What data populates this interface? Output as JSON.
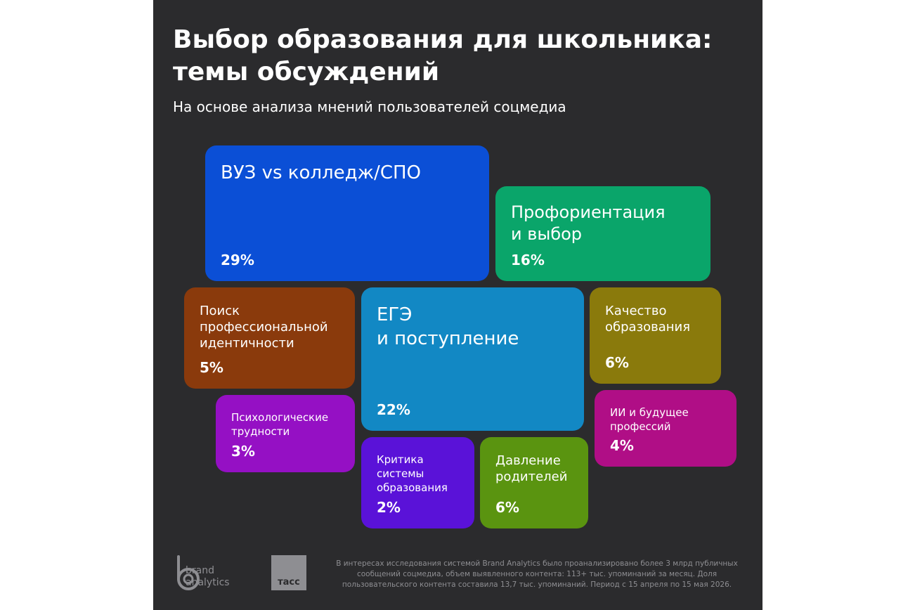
{
  "header": {
    "title": "Выбор образования для школьника: темы обсуждений",
    "subtitle": "На основе анализа мнений пользователей соцмедиа"
  },
  "chart_data": {
    "type": "treemap",
    "title": "Выбор образования для школьника: темы обсуждений",
    "subtitle": "На основе анализа мнений пользователей соцмедиа",
    "unit": "%",
    "series": [
      {
        "label": "ВУЗ vs колледж/СПО",
        "value": 29,
        "display": "29%",
        "color": "#0b4fd6"
      },
      {
        "label": "ЕГЭ и поступление",
        "value": 22,
        "display": "22%",
        "color": "#1288c4"
      },
      {
        "label": "Профориентация и выбор",
        "value": 16,
        "display": "16%",
        "color": "#0aa56a"
      },
      {
        "label": "Качество образования",
        "value": 6,
        "display": "6%",
        "color": "#8a7a0c"
      },
      {
        "label": "Давление родителей",
        "value": 6,
        "display": "6%",
        "color": "#5a9410"
      },
      {
        "label": "Поиск профессиональной идентичности",
        "value": 5,
        "display": "5%",
        "color": "#8a3a0c"
      },
      {
        "label": "ИИ и будущее профессий",
        "value": 4,
        "display": "4%",
        "color": "#b00e86"
      },
      {
        "label": "Психологические трудности",
        "value": 3,
        "display": "3%",
        "color": "#9510c4"
      },
      {
        "label": "Критика системы образования",
        "value": 2,
        "display": "2%",
        "color": "#5a12d8"
      }
    ]
  },
  "footer": {
    "brand_line1": "brand",
    "brand_line2": "analytics",
    "tass": "тасс",
    "note": "В интересах исследования системой Brand Analytics было проанализировано более 3 млрд публичных сообщений соцмедиа, объем выявленного контента: 113+ тыс. упоминаний за месяц. Доля пользовательского контента составила 13,7 тыс. упоминаний. Период с 15 апреля по 15 мая 2026."
  }
}
